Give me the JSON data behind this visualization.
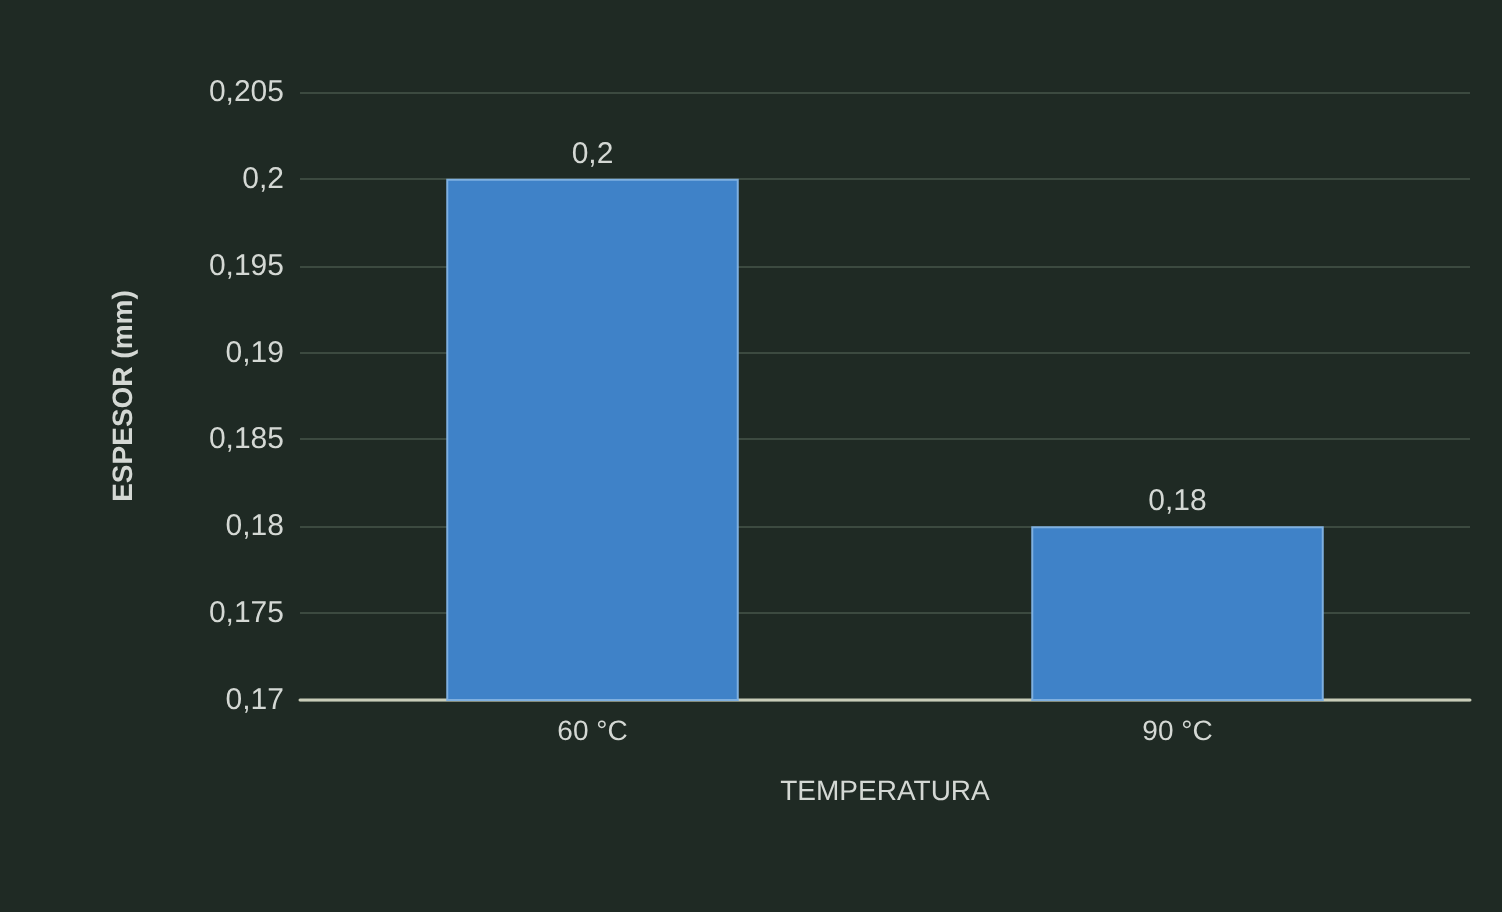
{
  "chart_data": {
    "type": "bar",
    "xlabel": "TEMPERATURA",
    "ylabel": "ESPESOR (mm)",
    "categories": [
      "60 °C",
      "90 °C"
    ],
    "series": [
      {
        "color": "#3f82c8",
        "values": [
          0.2,
          0.18
        ],
        "value_labels": [
          "0,2",
          "0,18"
        ]
      }
    ],
    "ylim": [
      0.17,
      0.205
    ],
    "yticks": [
      {
        "value": 0.17,
        "label": "0,17"
      },
      {
        "value": 0.175,
        "label": "0,175"
      },
      {
        "value": 0.18,
        "label": "0,18"
      },
      {
        "value": 0.185,
        "label": "0,185"
      },
      {
        "value": 0.19,
        "label": "0,19"
      },
      {
        "value": 0.195,
        "label": "0,195"
      },
      {
        "value": 0.2,
        "label": "0,2"
      },
      {
        "value": 0.205,
        "label": "0,205"
      }
    ],
    "grid": "y"
  }
}
